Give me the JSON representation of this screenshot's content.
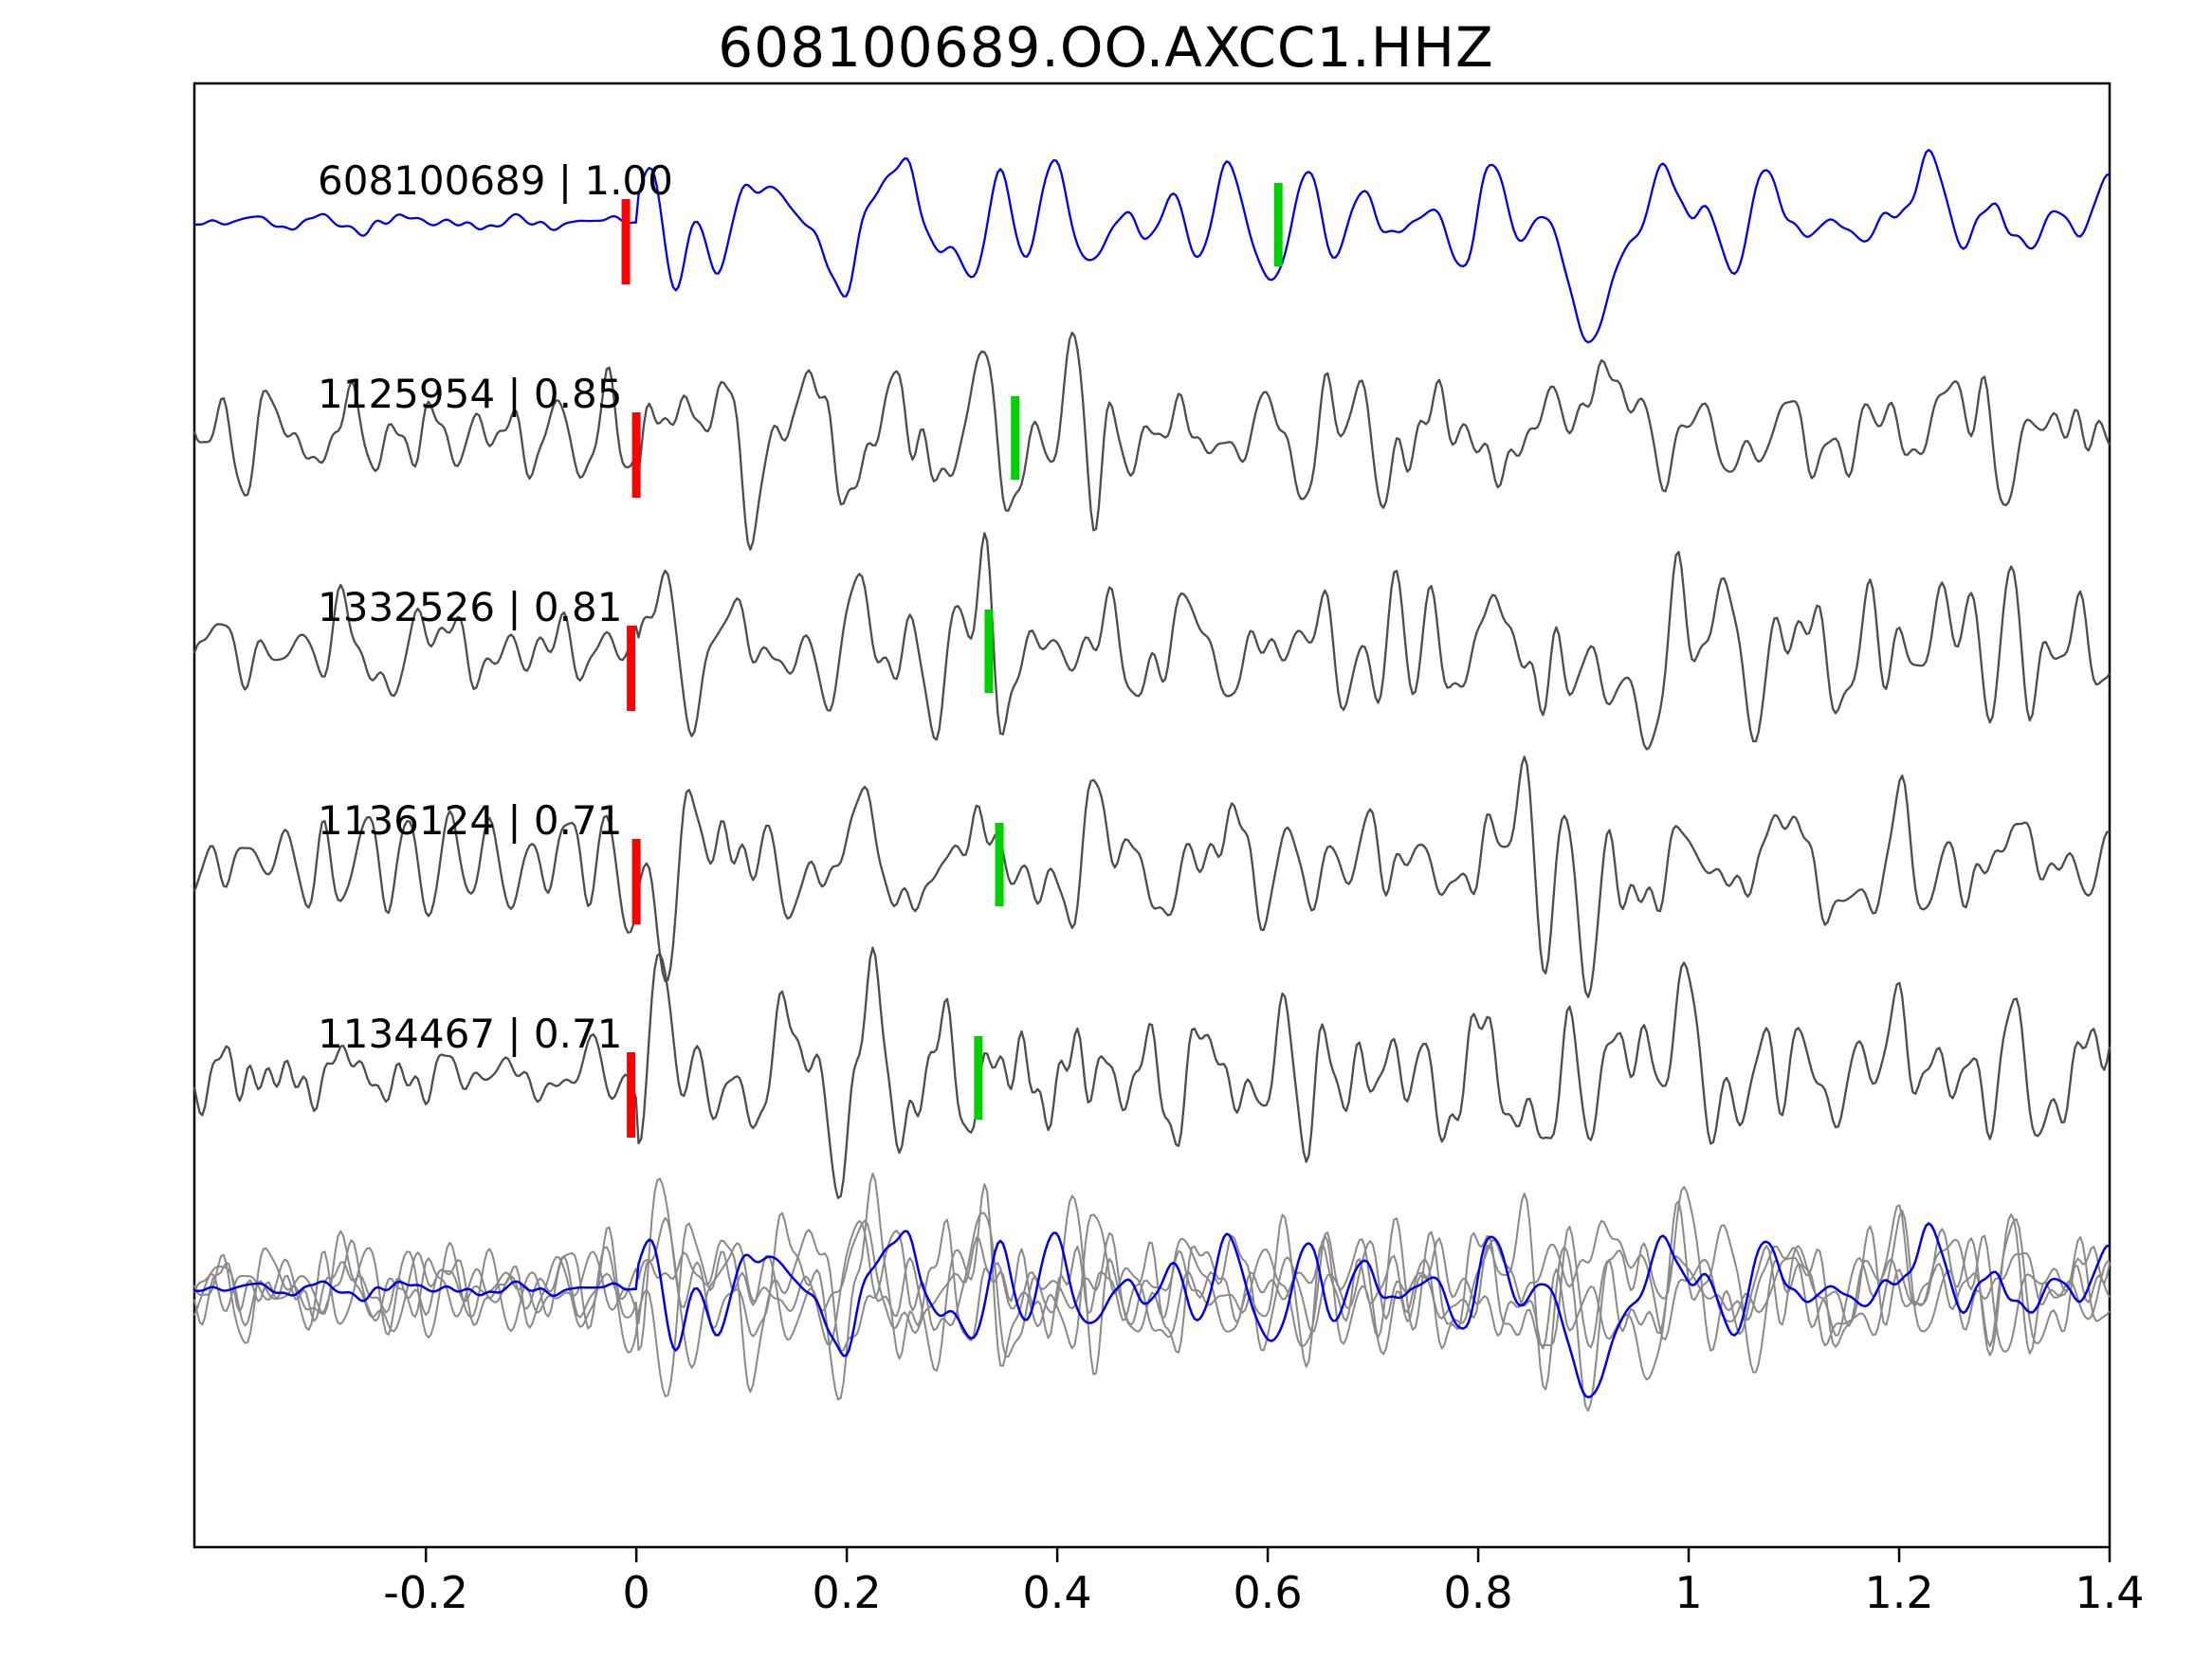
{
  "title": "608100689.OO.AXCC1.HHZ",
  "chart_data": {
    "type": "line",
    "title": "608100689.OO.AXCC1.HHZ",
    "xlabel": "",
    "ylabel": "",
    "xlim": [
      -0.42,
      1.4
    ],
    "x_ticks": [
      -0.2,
      0,
      0.2,
      0.4,
      0.6,
      0.8,
      1,
      1.2,
      1.4
    ],
    "x_tick_labels": [
      "-0.2",
      "0",
      "0.2",
      "0.4",
      "0.6",
      "0.8",
      "1",
      "1.2",
      "1.4"
    ],
    "grid": false,
    "series": [
      {
        "id": "608100689",
        "label": "608100689 | 1.00",
        "correlation": 1.0,
        "color": "#0000ee",
        "red_pick_x": -0.01,
        "green_pick_x": 0.61
      },
      {
        "id": "1125954",
        "label": "1125954 | 0.85",
        "correlation": 0.85,
        "color": "#4d4d4d",
        "red_pick_x": 0.0,
        "green_pick_x": 0.36
      },
      {
        "id": "1332526",
        "label": "1332526 | 0.81",
        "correlation": 0.81,
        "color": "#4d4d4d",
        "red_pick_x": -0.005,
        "green_pick_x": 0.335
      },
      {
        "id": "1136124",
        "label": "1136124 | 0.71",
        "correlation": 0.71,
        "color": "#4d4d4d",
        "red_pick_x": 0.0,
        "green_pick_x": 0.345
      },
      {
        "id": "1134467",
        "label": "1134467 | 0.71",
        "correlation": 0.71,
        "color": "#4d4d4d",
        "red_pick_x": -0.005,
        "green_pick_x": 0.325
      }
    ],
    "overlay_row": {
      "overlaid_series": [
        "1125954",
        "1332526",
        "1136124",
        "1134467",
        "608100689"
      ],
      "gray_color": "#8a8a8a",
      "template_color": "#0000ee"
    },
    "pick_marker_colors": {
      "red": "#ff0000",
      "green": "#00d000"
    },
    "axis_color": "#000000"
  }
}
